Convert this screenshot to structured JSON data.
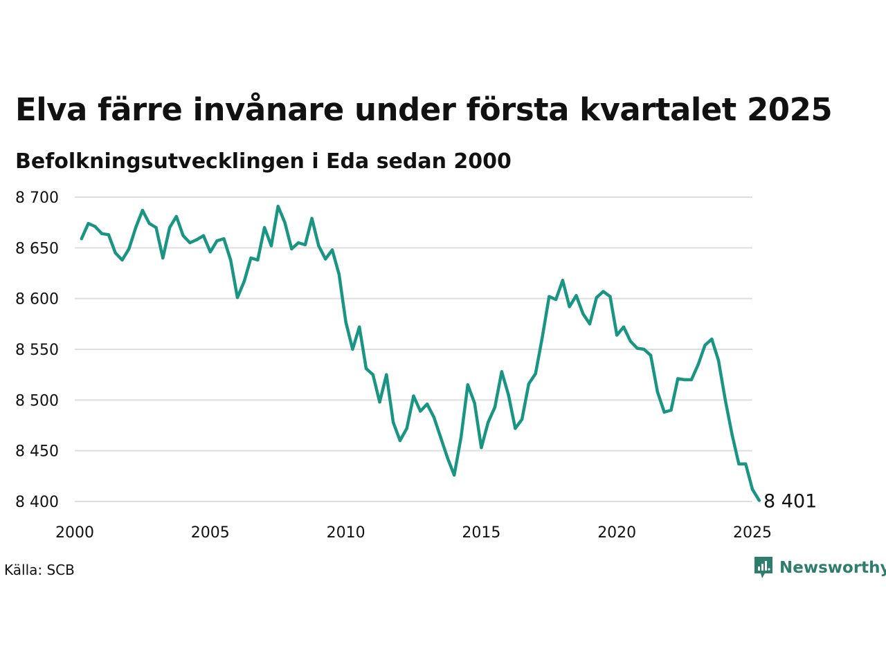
{
  "title": "Elva färre invånare under första kvartalet 2025",
  "subtitle": "Befolkningsutvecklingen i Eda sedan 2000",
  "source": "Källa: SCB",
  "logo_text": "Newsworthy",
  "colors": {
    "line": "#1a9583",
    "grid": "#dedede",
    "logo": "#2e7d6d"
  },
  "chart_data": {
    "type": "line",
    "title": "Elva färre invånare under första kvartalet 2025",
    "subtitle": "Befolkningsutvecklingen i Eda sedan 2000",
    "xlabel": "",
    "ylabel": "",
    "xlim": [
      2000,
      2025
    ],
    "ylim": [
      8400,
      8700
    ],
    "x_ticks": [
      "2000",
      "2005",
      "2010",
      "2015",
      "2020",
      "2025"
    ],
    "y_ticks": [
      "8 400",
      "8 450",
      "8 500",
      "8 550",
      "8 600",
      "8 650",
      "8 700"
    ],
    "grid": "horizontal",
    "end_label": "8 401",
    "series": [
      {
        "x": [
          2000.25,
          2000.5,
          2000.75,
          2001,
          2001.25,
          2001.5,
          2001.75,
          2002,
          2002.25,
          2002.5,
          2002.75,
          2003,
          2003.25,
          2003.5,
          2003.75,
          2004,
          2004.25,
          2004.5,
          2004.75,
          2005,
          2005.25,
          2005.5,
          2005.75,
          2006,
          2006.25,
          2006.5,
          2006.75,
          2007,
          2007.25,
          2007.5,
          2007.75,
          2008,
          2008.25,
          2008.5,
          2008.75,
          2009,
          2009.25,
          2009.5,
          2009.75,
          2010,
          2010.25,
          2010.5,
          2010.75,
          2011,
          2011.25,
          2011.5,
          2011.75,
          2012,
          2012.25,
          2012.5,
          2012.75,
          2013,
          2013.25,
          2013.5,
          2013.75,
          2014,
          2014.25,
          2014.5,
          2014.75,
          2015,
          2015.25,
          2015.5,
          2015.75,
          2016,
          2016.25,
          2016.5,
          2016.75,
          2017,
          2017.25,
          2017.5,
          2017.75,
          2018,
          2018.25,
          2018.5,
          2018.75,
          2019,
          2019.25,
          2019.5,
          2019.75,
          2020,
          2020.25,
          2020.5,
          2020.75,
          2021,
          2021.25,
          2021.5,
          2021.75,
          2022,
          2022.25,
          2022.5,
          2022.75,
          2023,
          2023.25,
          2023.5,
          2023.75,
          2024,
          2024.25,
          2024.5,
          2024.75,
          2025,
          2025.25
        ],
        "values": [
          8659,
          8674,
          8671,
          8664,
          8663,
          8645,
          8638,
          8649,
          8670,
          8687,
          8674,
          8670,
          8640,
          8670,
          8681,
          8662,
          8655,
          8658,
          8662,
          8646,
          8657,
          8659,
          8638,
          8601,
          8617,
          8640,
          8638,
          8670,
          8652,
          8691,
          8675,
          8649,
          8655,
          8653,
          8679,
          8652,
          8639,
          8648,
          8624,
          8577,
          8550,
          8572,
          8531,
          8525,
          8498,
          8525,
          8478,
          8460,
          8472,
          8504,
          8489,
          8496,
          8483,
          8463,
          8443,
          8426,
          8463,
          8515,
          8497,
          8453,
          8478,
          8493,
          8528,
          8505,
          8472,
          8481,
          8516,
          8526,
          8562,
          8602,
          8599,
          8618,
          8592,
          8603,
          8585,
          8575,
          8601,
          8607,
          8602,
          8564,
          8572,
          8558,
          8551,
          8550,
          8544,
          8508,
          8488,
          8490,
          8521,
          8520,
          8520,
          8535,
          8554,
          8560,
          8539,
          8500,
          8466,
          8437,
          8437,
          8412,
          8401
        ]
      }
    ]
  }
}
